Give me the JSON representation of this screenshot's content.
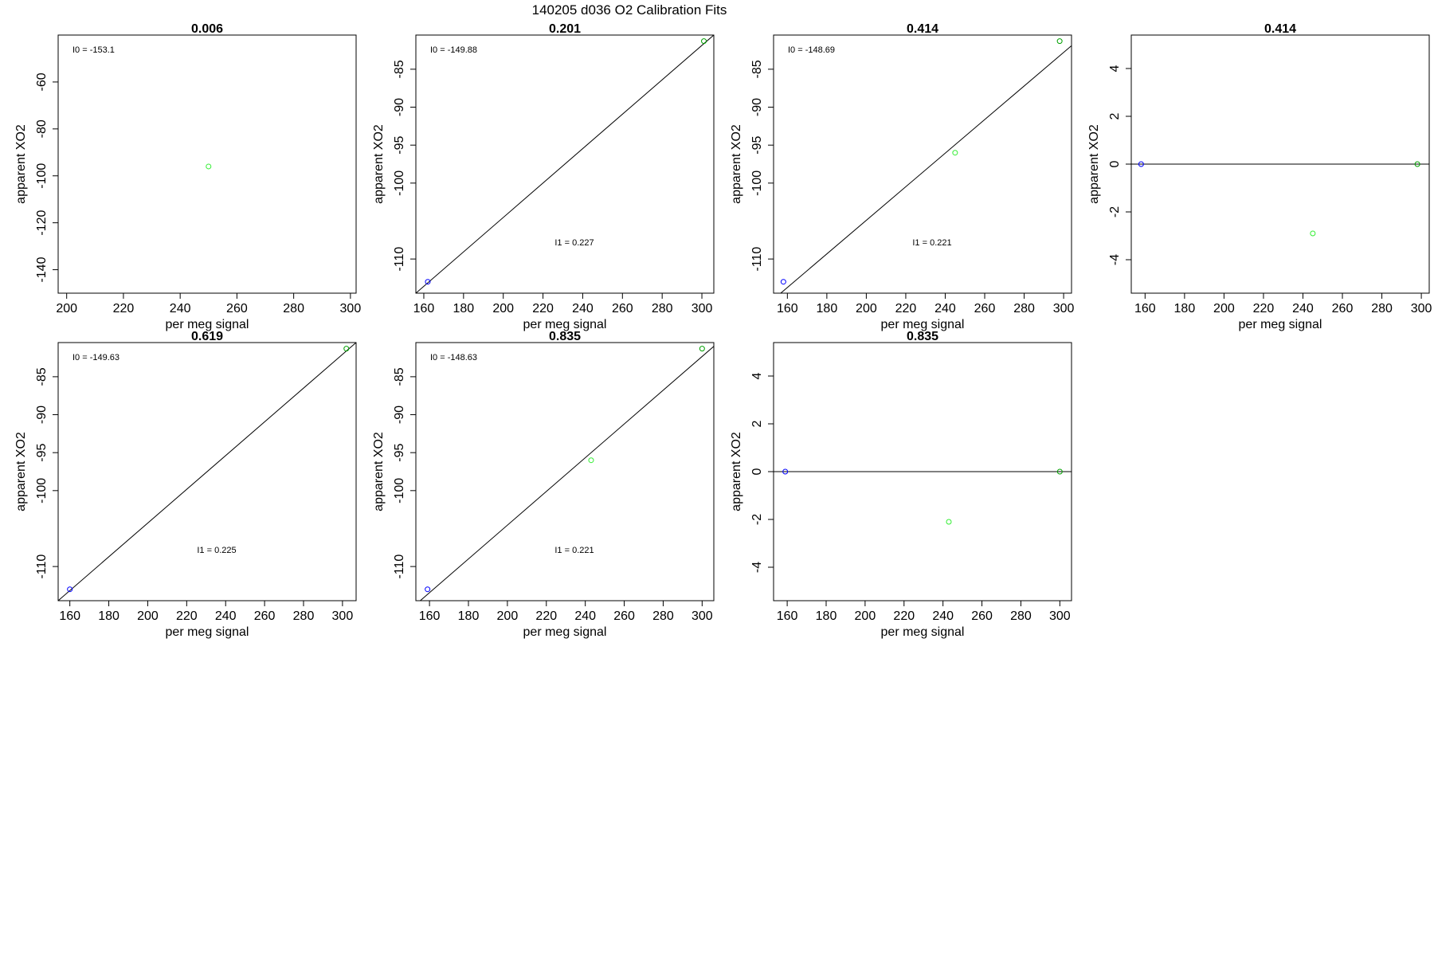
{
  "page": {
    "title": "140205   d036   O2 Calibration Fits"
  },
  "colors": {
    "blue": "#0000ff",
    "dark_green": "#00a000",
    "light_green": "#33ee33",
    "line": "#000000"
  },
  "chart_data": [
    {
      "type": "scatter",
      "title": "0.006",
      "xlabel": "per meg signal",
      "ylabel": "apparent XO2",
      "xlim": [
        197,
        302
      ],
      "ylim": [
        -150,
        -40
      ],
      "xticks": [
        200,
        220,
        240,
        260,
        280,
        300
      ],
      "yticks": [
        -140,
        -120,
        -100,
        -80,
        -60
      ],
      "points": [
        {
          "x": 250,
          "y": -96,
          "color": "light_green"
        }
      ],
      "fit_line": null,
      "annotations": [
        {
          "text": "I0 =  -153.1",
          "pos": "top-left"
        }
      ]
    },
    {
      "type": "scatter",
      "title": "0.201",
      "xlabel": "per meg signal",
      "ylabel": "apparent XO2",
      "xlim": [
        156,
        306
      ],
      "ylim": [
        -114.5,
        -80.5
      ],
      "xticks": [
        160,
        180,
        200,
        220,
        240,
        260,
        280,
        300
      ],
      "yticks": [
        -110,
        -100,
        -95,
        -90,
        -85
      ],
      "points": [
        {
          "x": 162,
          "y": -113,
          "color": "blue"
        },
        {
          "x": 301,
          "y": -81.3,
          "color": "dark_green"
        }
      ],
      "fit_line": {
        "x1": 156,
        "y1": -114.5,
        "x2": 306,
        "y2": -80.5
      },
      "annotations": [
        {
          "text": "I0 =  -149.88",
          "pos": "top-left"
        },
        {
          "text": "I1 =  0.227",
          "pos": "center"
        }
      ]
    },
    {
      "type": "scatter",
      "title": "0.414",
      "xlabel": "per meg signal",
      "ylabel": "apparent XO2",
      "xlim": [
        153,
        304
      ],
      "ylim": [
        -114.5,
        -80.5
      ],
      "xticks": [
        160,
        180,
        200,
        220,
        240,
        260,
        280,
        300
      ],
      "yticks": [
        -110,
        -100,
        -95,
        -90,
        -85
      ],
      "points": [
        {
          "x": 158,
          "y": -113,
          "color": "blue"
        },
        {
          "x": 245,
          "y": -96,
          "color": "light_green"
        },
        {
          "x": 298,
          "y": -81.3,
          "color": "dark_green"
        }
      ],
      "fit_line": {
        "x1": 153,
        "y1": -115.3,
        "x2": 304,
        "y2": -81.9
      },
      "annotations": [
        {
          "text": "I0 =  -148.69",
          "pos": "top-left"
        },
        {
          "text": "I1 =  0.221",
          "pos": "center"
        }
      ]
    },
    {
      "type": "scatter",
      "title": "0.414",
      "xlabel": "per meg signal",
      "ylabel": "apparent XO2",
      "xlim": [
        153,
        304
      ],
      "ylim": [
        -5.4,
        5.4
      ],
      "xticks": [
        160,
        180,
        200,
        220,
        240,
        260,
        280,
        300
      ],
      "yticks": [
        -4,
        -2,
        0,
        2,
        4
      ],
      "points": [
        {
          "x": 158,
          "y": 0,
          "color": "blue"
        },
        {
          "x": 245,
          "y": -2.9,
          "color": "light_green"
        },
        {
          "x": 298,
          "y": 0,
          "color": "dark_green"
        }
      ],
      "fit_line": {
        "x1": 153,
        "y1": 0,
        "x2": 304,
        "y2": 0
      },
      "annotations": []
    },
    {
      "type": "scatter",
      "title": "0.619",
      "xlabel": "per meg signal",
      "ylabel": "apparent XO2",
      "xlim": [
        154,
        307
      ],
      "ylim": [
        -114.5,
        -80.5
      ],
      "xticks": [
        160,
        180,
        200,
        220,
        240,
        260,
        280,
        300
      ],
      "yticks": [
        -110,
        -100,
        -95,
        -90,
        -85
      ],
      "points": [
        {
          "x": 160,
          "y": -113,
          "color": "blue"
        },
        {
          "x": 302,
          "y": -81.3,
          "color": "dark_green"
        }
      ],
      "fit_line": {
        "x1": 154,
        "y1": -114.5,
        "x2": 307,
        "y2": -80.5
      },
      "annotations": [
        {
          "text": "I0 =  -149.63",
          "pos": "top-left"
        },
        {
          "text": "I1 =  0.225",
          "pos": "center"
        }
      ]
    },
    {
      "type": "scatter",
      "title": "0.835",
      "xlabel": "per meg signal",
      "ylabel": "apparent XO2",
      "xlim": [
        153,
        306
      ],
      "ylim": [
        -114.5,
        -80.5
      ],
      "xticks": [
        160,
        180,
        200,
        220,
        240,
        260,
        280,
        300
      ],
      "yticks": [
        -110,
        -100,
        -95,
        -90,
        -85
      ],
      "points": [
        {
          "x": 159,
          "y": -113,
          "color": "blue"
        },
        {
          "x": 243,
          "y": -96,
          "color": "light_green"
        },
        {
          "x": 300,
          "y": -81.3,
          "color": "dark_green"
        }
      ],
      "fit_line": {
        "x1": 153,
        "y1": -115.0,
        "x2": 306,
        "y2": -81.0
      },
      "annotations": [
        {
          "text": "I0 =  -148.63",
          "pos": "top-left"
        },
        {
          "text": "I1 =  0.221",
          "pos": "center"
        }
      ]
    },
    {
      "type": "scatter",
      "title": "0.835",
      "xlabel": "per meg signal",
      "ylabel": "apparent XO2",
      "xlim": [
        153,
        306
      ],
      "ylim": [
        -5.4,
        5.4
      ],
      "xticks": [
        160,
        180,
        200,
        220,
        240,
        260,
        280,
        300
      ],
      "yticks": [
        -4,
        -2,
        0,
        2,
        4
      ],
      "points": [
        {
          "x": 159,
          "y": 0,
          "color": "blue"
        },
        {
          "x": 243,
          "y": -2.1,
          "color": "light_green"
        },
        {
          "x": 300,
          "y": 0,
          "color": "dark_green"
        }
      ],
      "fit_line": {
        "x1": 153,
        "y1": 0,
        "x2": 306,
        "y2": 0
      },
      "annotations": []
    }
  ]
}
